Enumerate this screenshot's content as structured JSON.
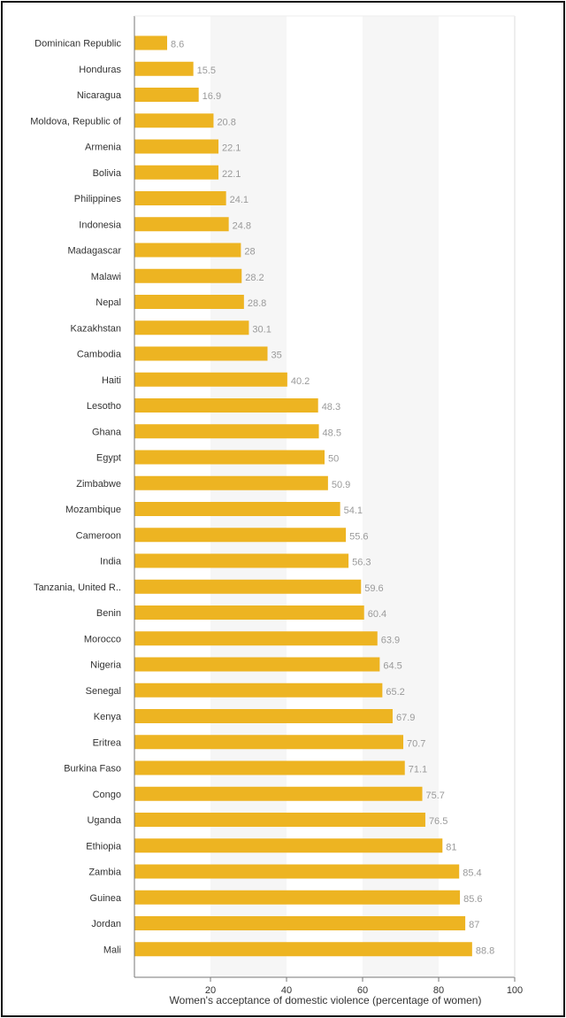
{
  "chart_data": {
    "type": "bar",
    "orientation": "horizontal",
    "title": "",
    "xlabel": "Women's acceptance of domestic violence (percentage of women)",
    "ylabel": "",
    "xlim": [
      0,
      100
    ],
    "xticks": [
      "20",
      "40",
      "60",
      "80",
      "100"
    ],
    "bar_color": "#EDB422",
    "band_color": "#F6F6F6",
    "categories": [
      "Dominican Republic",
      "Honduras",
      "Nicaragua",
      "Moldova, Republic of",
      "Armenia",
      "Bolivia",
      "Philippines",
      "Indonesia",
      "Madagascar",
      "Malawi",
      "Nepal",
      "Kazakhstan",
      "Cambodia",
      "Haiti",
      "Lesotho",
      "Ghana",
      "Egypt",
      "Zimbabwe",
      "Mozambique",
      "Cameroon",
      "India",
      "Tanzania, United R..",
      "Benin",
      "Morocco",
      "Nigeria",
      "Senegal",
      "Kenya",
      "Eritrea",
      "Burkina Faso",
      "Congo",
      "Uganda",
      "Ethiopia",
      "Zambia",
      "Guinea",
      "Jordan",
      "Mali"
    ],
    "values": [
      8.6,
      15.5,
      16.9,
      20.8,
      22.1,
      22.1,
      24.1,
      24.8,
      28,
      28.2,
      28.8,
      30.1,
      35,
      40.2,
      48.3,
      48.5,
      50,
      50.9,
      54.1,
      55.6,
      56.3,
      59.6,
      60.4,
      63.9,
      64.5,
      65.2,
      67.9,
      70.7,
      71.1,
      75.7,
      76.5,
      81,
      85.4,
      85.6,
      87,
      88.8
    ],
    "value_labels": [
      "8.6",
      "15.5",
      "16.9",
      "20.8",
      "22.1",
      "22.1",
      "24.1",
      "24.8",
      "28",
      "28.2",
      "28.8",
      "30.1",
      "35",
      "40.2",
      "48.3",
      "48.5",
      "50",
      "50.9",
      "54.1",
      "55.6",
      "56.3",
      "59.6",
      "60.4",
      "63.9",
      "64.5",
      "65.2",
      "67.9",
      "70.7",
      "71.1",
      "75.7",
      "76.5",
      "81",
      "85.4",
      "85.6",
      "87",
      "88.8"
    ]
  }
}
